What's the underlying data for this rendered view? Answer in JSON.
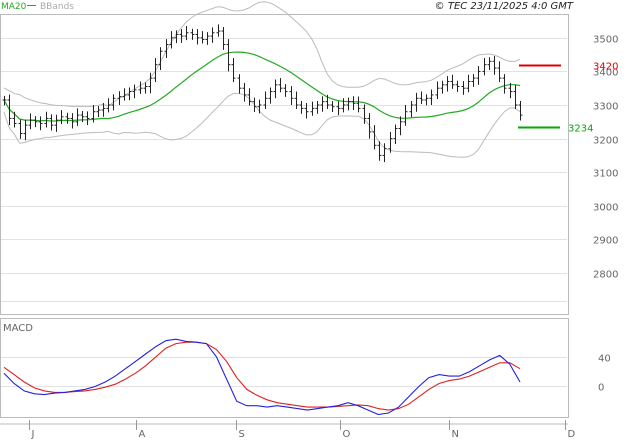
{
  "header": {
    "legend_ma": "MA20",
    "legend_bb": "BBands",
    "copyright": "© TEC 23/11/2025 4:0 GMT"
  },
  "colors": {
    "ma": "#22aa22",
    "bbands": "#bbbbbb",
    "bars": "#222222",
    "grid": "#e2e2e2",
    "resistance": "#dd0000",
    "support": "#00aa00",
    "macd": "#2222dd",
    "signal": "#dd2222"
  },
  "chart_data": [
    {
      "type": "line",
      "subtype": "ohlc-bar",
      "title": "",
      "x_ticks": [
        "J",
        "A",
        "S",
        "O",
        "N",
        "D"
      ],
      "y_ticks": [
        2800,
        2900,
        3000,
        3100,
        3200,
        3300,
        3400,
        3500
      ],
      "ylim": [
        2700,
        3600
      ],
      "grid": true,
      "closes": [
        3315,
        3260,
        3245,
        3215,
        3240,
        3255,
        3250,
        3245,
        3260,
        3240,
        3255,
        3265,
        3260,
        3250,
        3270,
        3265,
        3260,
        3280,
        3285,
        3290,
        3300,
        3320,
        3325,
        3330,
        3340,
        3345,
        3350,
        3355,
        3380,
        3420,
        3460,
        3480,
        3500,
        3510,
        3505,
        3515,
        3510,
        3500,
        3495,
        3505,
        3515,
        3520,
        3480,
        3420,
        3380,
        3350,
        3330,
        3310,
        3295,
        3300,
        3320,
        3340,
        3360,
        3350,
        3340,
        3320,
        3300,
        3290,
        3280,
        3290,
        3300,
        3310,
        3300,
        3295,
        3290,
        3300,
        3310,
        3305,
        3290,
        3260,
        3220,
        3180,
        3150,
        3170,
        3200,
        3230,
        3250,
        3280,
        3300,
        3320,
        3315,
        3320,
        3330,
        3350,
        3360,
        3370,
        3360,
        3355,
        3350,
        3370,
        3380,
        3400,
        3420,
        3430,
        3410,
        3380,
        3350,
        3340,
        3300,
        3270
      ],
      "series": [
        {
          "name": "MA20"
        },
        {
          "name": "BBands"
        }
      ],
      "markers": [
        {
          "label": "3420",
          "value": 3420,
          "kind": "resistance"
        },
        {
          "label": "3234",
          "value": 3234,
          "kind": "support"
        }
      ]
    },
    {
      "type": "line",
      "title": "MACD",
      "y_ticks": [
        0,
        40
      ],
      "y_tick_labels": [
        "0",
        "40"
      ],
      "ylim": [
        -40,
        90
      ],
      "macd": [
        18,
        4,
        -6,
        -10,
        -11,
        -9,
        -8,
        -6,
        -4,
        0,
        6,
        14,
        24,
        34,
        44,
        54,
        62,
        64,
        61,
        60,
        58,
        40,
        10,
        -20,
        -26,
        -26,
        -28,
        -26,
        -28,
        -30,
        -32,
        -30,
        -28,
        -26,
        -22,
        -26,
        -32,
        -38,
        -36,
        -28,
        -14,
        0,
        12,
        16,
        14,
        14,
        20,
        28,
        36,
        42,
        30,
        6
      ],
      "signal": [
        26,
        16,
        6,
        -2,
        -6,
        -8,
        -8,
        -7,
        -6,
        -4,
        -1,
        3,
        10,
        18,
        28,
        40,
        52,
        58,
        60,
        60,
        58,
        50,
        34,
        12,
        -4,
        -12,
        -18,
        -22,
        -24,
        -26,
        -28,
        -28,
        -28,
        -27,
        -26,
        -25,
        -26,
        -30,
        -32,
        -30,
        -24,
        -14,
        -4,
        4,
        8,
        10,
        14,
        20,
        26,
        32,
        32,
        24
      ]
    }
  ]
}
